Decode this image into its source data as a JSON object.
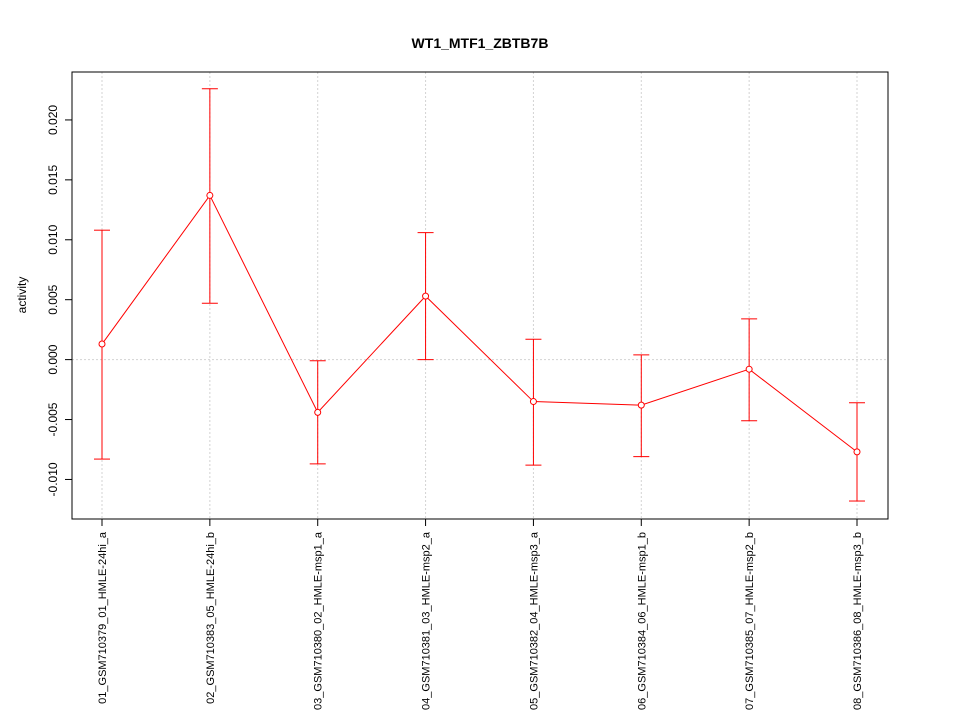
{
  "chart_data": {
    "type": "line",
    "title": "WT1_MTF1_ZBTB7B",
    "xlabel": "",
    "ylabel": "activity",
    "ylim": [
      -0.0133,
      0.024
    ],
    "yticks": [
      -0.01,
      -0.005,
      0.0,
      0.005,
      0.01,
      0.015,
      0.02
    ],
    "ytick_labels": [
      "-0.010",
      "-0.005",
      "0.000",
      "0.005",
      "0.010",
      "0.015",
      "0.020"
    ],
    "grid": true,
    "categories": [
      "01_GSM710379_01_HMLE-24hi_a",
      "02_GSM710383_05_HMLE-24hi_b",
      "03_GSM710380_02_HMLE-msp1_a",
      "04_GSM710381_03_HMLE-msp2_a",
      "05_GSM710382_04_HMLE-msp3_a",
      "06_GSM710384_06_HMLE-msp1_b",
      "07_GSM710385_07_HMLE-msp2_b",
      "08_GSM710386_08_HMLE-msp3_b"
    ],
    "series": [
      {
        "color": "#ff0000",
        "values": [
          0.0013,
          0.0137,
          -0.0044,
          0.0053,
          -0.0035,
          -0.0038,
          -0.0008,
          -0.0077
        ],
        "upper": [
          0.0108,
          0.0226,
          -0.0001,
          0.0106,
          0.0017,
          0.0004,
          0.0034,
          -0.0036
        ],
        "lower": [
          -0.0083,
          0.0047,
          -0.0087,
          0.0,
          -0.0088,
          -0.0081,
          -0.0051,
          -0.0118
        ]
      }
    ]
  }
}
